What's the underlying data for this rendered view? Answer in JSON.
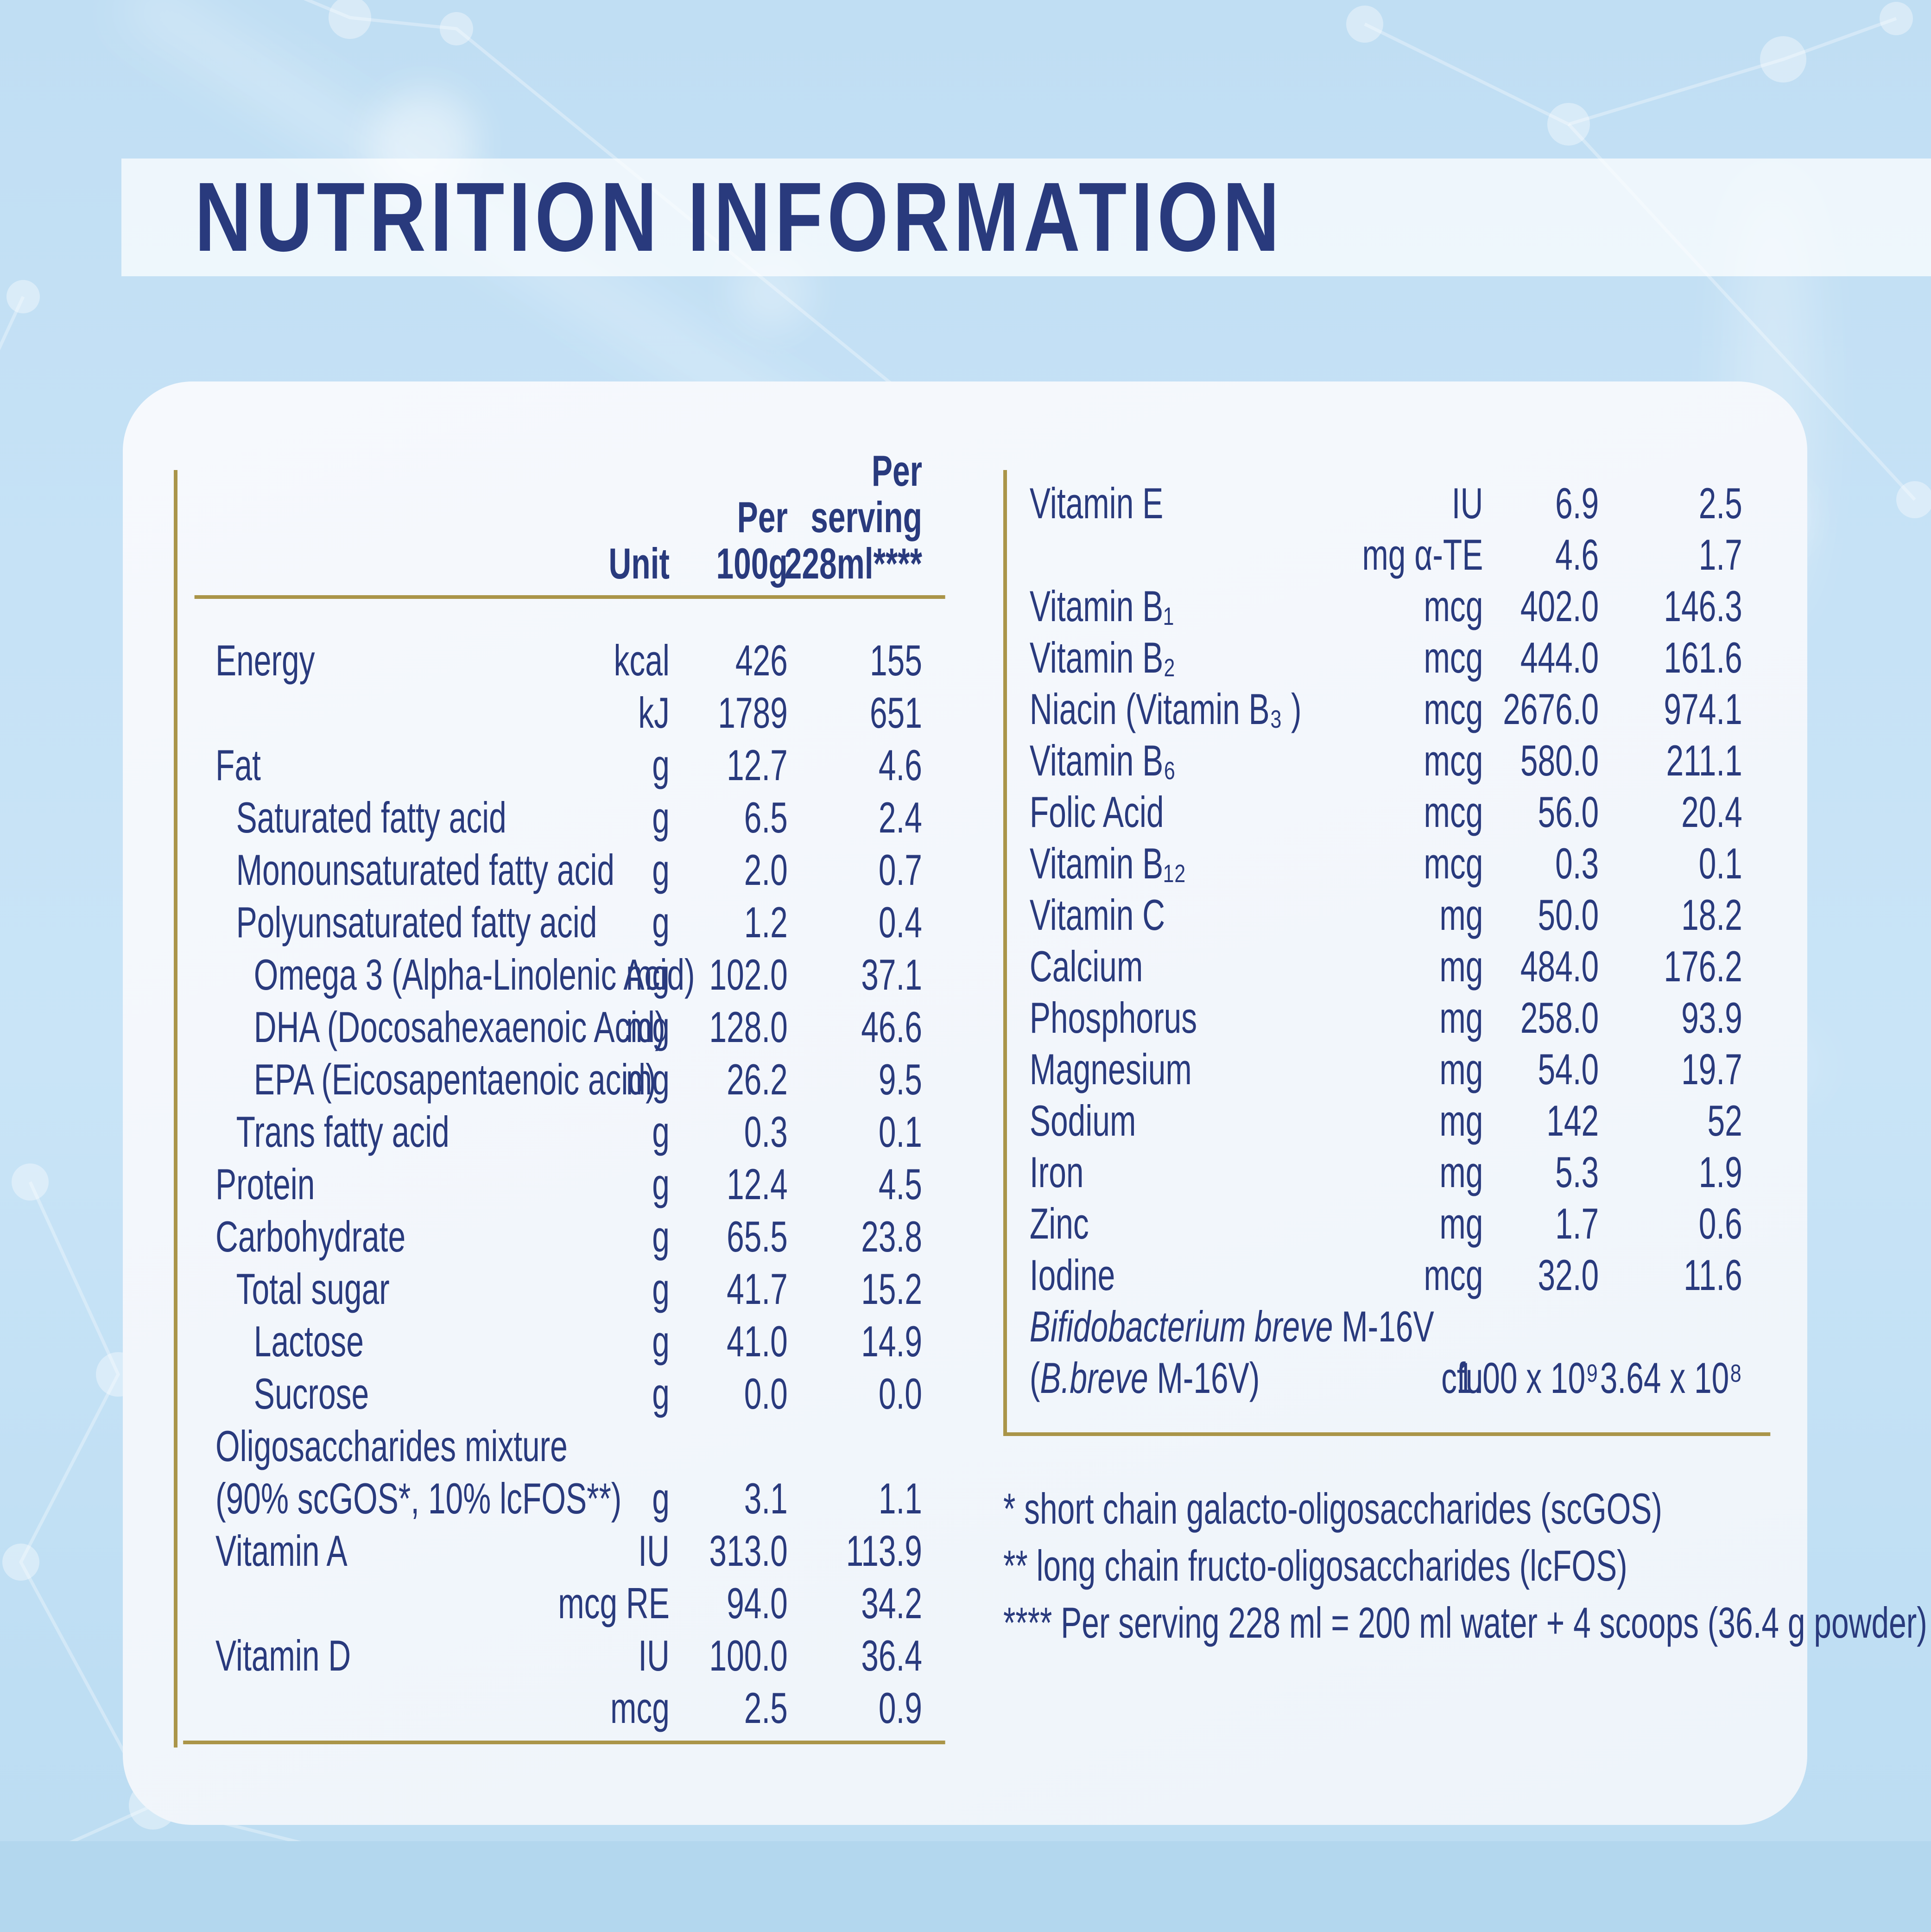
{
  "title": "NUTRITION INFORMATION",
  "colors": {
    "navy": "#293a7d",
    "gold": "#aa9549",
    "page_bg": "#c6e2f6",
    "card_bg": "#f3f7fc",
    "band_bg": "rgba(255,255,255,0.72)",
    "bottom_strip": "#b3d7ee"
  },
  "table_left": {
    "headers": {
      "unit": "Unit",
      "per_100g_line1": "Per",
      "per_100g_line2": "100g",
      "serving_line1": "Per",
      "serving_line2": "serving",
      "serving_line3": "228ml****"
    },
    "rows": [
      {
        "label": "Energy",
        "indent": 0,
        "unit": "kcal",
        "per_100g": "426",
        "per_serving": "155"
      },
      {
        "label": "",
        "indent": 0,
        "unit": "kJ",
        "per_100g": "1789",
        "per_serving": "651"
      },
      {
        "label": "Fat",
        "indent": 0,
        "unit": "g",
        "per_100g": "12.7",
        "per_serving": "4.6"
      },
      {
        "label": "Saturated fatty acid",
        "indent": 1,
        "unit": "g",
        "per_100g": "6.5",
        "per_serving": "2.4"
      },
      {
        "label": "Monounsaturated fatty acid",
        "indent": 1,
        "unit": "g",
        "per_100g": "2.0",
        "per_serving": "0.7"
      },
      {
        "label": "Polyunsaturated fatty acid",
        "indent": 1,
        "unit": "g",
        "per_100g": "1.2",
        "per_serving": "0.4"
      },
      {
        "label": "Omega 3 (Alpha-Linolenic Acid)",
        "indent": 2,
        "unit": "mg",
        "per_100g": "102.0",
        "per_serving": "37.1"
      },
      {
        "label": "DHA (Docosahexaenoic Acid)",
        "indent": 2,
        "unit": "mg",
        "per_100g": "128.0",
        "per_serving": "46.6"
      },
      {
        "label": "EPA (Eicosapentaenoic acid)",
        "indent": 2,
        "unit": "mg",
        "per_100g": "26.2",
        "per_serving": "9.5"
      },
      {
        "label": "Trans fatty acid",
        "indent": 1,
        "unit": "g",
        "per_100g": "0.3",
        "per_serving": "0.1"
      },
      {
        "label": "Protein",
        "indent": 0,
        "unit": "g",
        "per_100g": "12.4",
        "per_serving": "4.5"
      },
      {
        "label": "Carbohydrate",
        "indent": 0,
        "unit": "g",
        "per_100g": "65.5",
        "per_serving": "23.8"
      },
      {
        "label": "Total sugar",
        "indent": 1,
        "unit": "g",
        "per_100g": "41.7",
        "per_serving": "15.2"
      },
      {
        "label": "Lactose",
        "indent": 2,
        "unit": "g",
        "per_100g": "41.0",
        "per_serving": "14.9"
      },
      {
        "label": "Sucrose",
        "indent": 2,
        "unit": "g",
        "per_100g": "0.0",
        "per_serving": "0.0"
      },
      {
        "label": "Oligosaccharides mixture",
        "indent": 0,
        "unit": "",
        "per_100g": "",
        "per_serving": ""
      },
      {
        "label": "(90% scGOS*, 10% lcFOS**)",
        "indent": 0,
        "unit": "g",
        "per_100g": "3.1",
        "per_serving": "1.1"
      },
      {
        "label": "Vitamin A",
        "indent": 0,
        "unit": "IU",
        "per_100g": "313.0",
        "per_serving": "113.9"
      },
      {
        "label": "",
        "indent": 0,
        "unit": "mcg RE",
        "per_100g": "94.0",
        "per_serving": "34.2"
      },
      {
        "label": "Vitamin D",
        "indent": 0,
        "unit": "IU",
        "per_100g": "100.0",
        "per_serving": "36.4"
      },
      {
        "label": "",
        "indent": 0,
        "unit": "mcg",
        "per_100g": "2.5",
        "per_serving": "0.9"
      }
    ]
  },
  "table_right": {
    "rows": [
      {
        "label": "Vitamin E",
        "indent": 0,
        "unit": "IU",
        "per_100g": "6.9",
        "per_serving": "2.5"
      },
      {
        "label": "",
        "indent": 0,
        "unit": "mg α-TE",
        "per_100g": "4.6",
        "per_serving": "1.7"
      },
      {
        "label": "Vitamin B₁",
        "indent": 0,
        "unit": "mcg",
        "per_100g": "402.0",
        "per_serving": "146.3"
      },
      {
        "label": "Vitamin B₂",
        "indent": 0,
        "unit": "mcg",
        "per_100g": "444.0",
        "per_serving": "161.6"
      },
      {
        "label": "Niacin (Vitamin B₃ )",
        "indent": 0,
        "unit": "mcg",
        "per_100g": "2676.0",
        "per_serving": "974.1"
      },
      {
        "label": "Vitamin B₆",
        "indent": 0,
        "unit": "mcg",
        "per_100g": "580.0",
        "per_serving": "211.1"
      },
      {
        "label": "Folic Acid",
        "indent": 0,
        "unit": "mcg",
        "per_100g": "56.0",
        "per_serving": "20.4"
      },
      {
        "label": "Vitamin B₁₂",
        "indent": 0,
        "unit": "mcg",
        "per_100g": "0.3",
        "per_serving": "0.1"
      },
      {
        "label": "Vitamin C",
        "indent": 0,
        "unit": "mg",
        "per_100g": "50.0",
        "per_serving": "18.2"
      },
      {
        "label": "Calcium",
        "indent": 0,
        "unit": "mg",
        "per_100g": "484.0",
        "per_serving": "176.2"
      },
      {
        "label": "Phosphorus",
        "indent": 0,
        "unit": "mg",
        "per_100g": "258.0",
        "per_serving": "93.9"
      },
      {
        "label": "Magnesium",
        "indent": 0,
        "unit": "mg",
        "per_100g": "54.0",
        "per_serving": "19.7"
      },
      {
        "label": "Sodium",
        "indent": 0,
        "unit": "mg",
        "per_100g": "142",
        "per_serving": "52"
      },
      {
        "label": "Iron",
        "indent": 0,
        "unit": "mg",
        "per_100g": "5.3",
        "per_serving": "1.9"
      },
      {
        "label": "Zinc",
        "indent": 0,
        "unit": "mg",
        "per_100g": "1.7",
        "per_serving": "0.6"
      },
      {
        "label": "Iodine",
        "indent": 0,
        "unit": "mcg",
        "per_100g": "32.0",
        "per_serving": "11.6"
      },
      {
        "label_italic": "Bifidobacterium breve",
        "label": " M-16V",
        "indent": 0,
        "unit": "",
        "per_100g": "",
        "per_serving": ""
      },
      {
        "label_pre": "(",
        "label_italic": "B.breve",
        "label": " M-16V)",
        "indent": 0,
        "unit": "cfu",
        "per_100g": "1.00 x 10⁹",
        "per_serving": "3.64 x 10⁸"
      }
    ]
  },
  "footnotes": [
    "* short chain galacto-oligosaccharides (scGOS)",
    "** long chain fructo-oligosaccharides (lcFOS)",
    "**** Per serving 228 ml = 200 ml water + 4 scoops (36.4 g powder)"
  ]
}
